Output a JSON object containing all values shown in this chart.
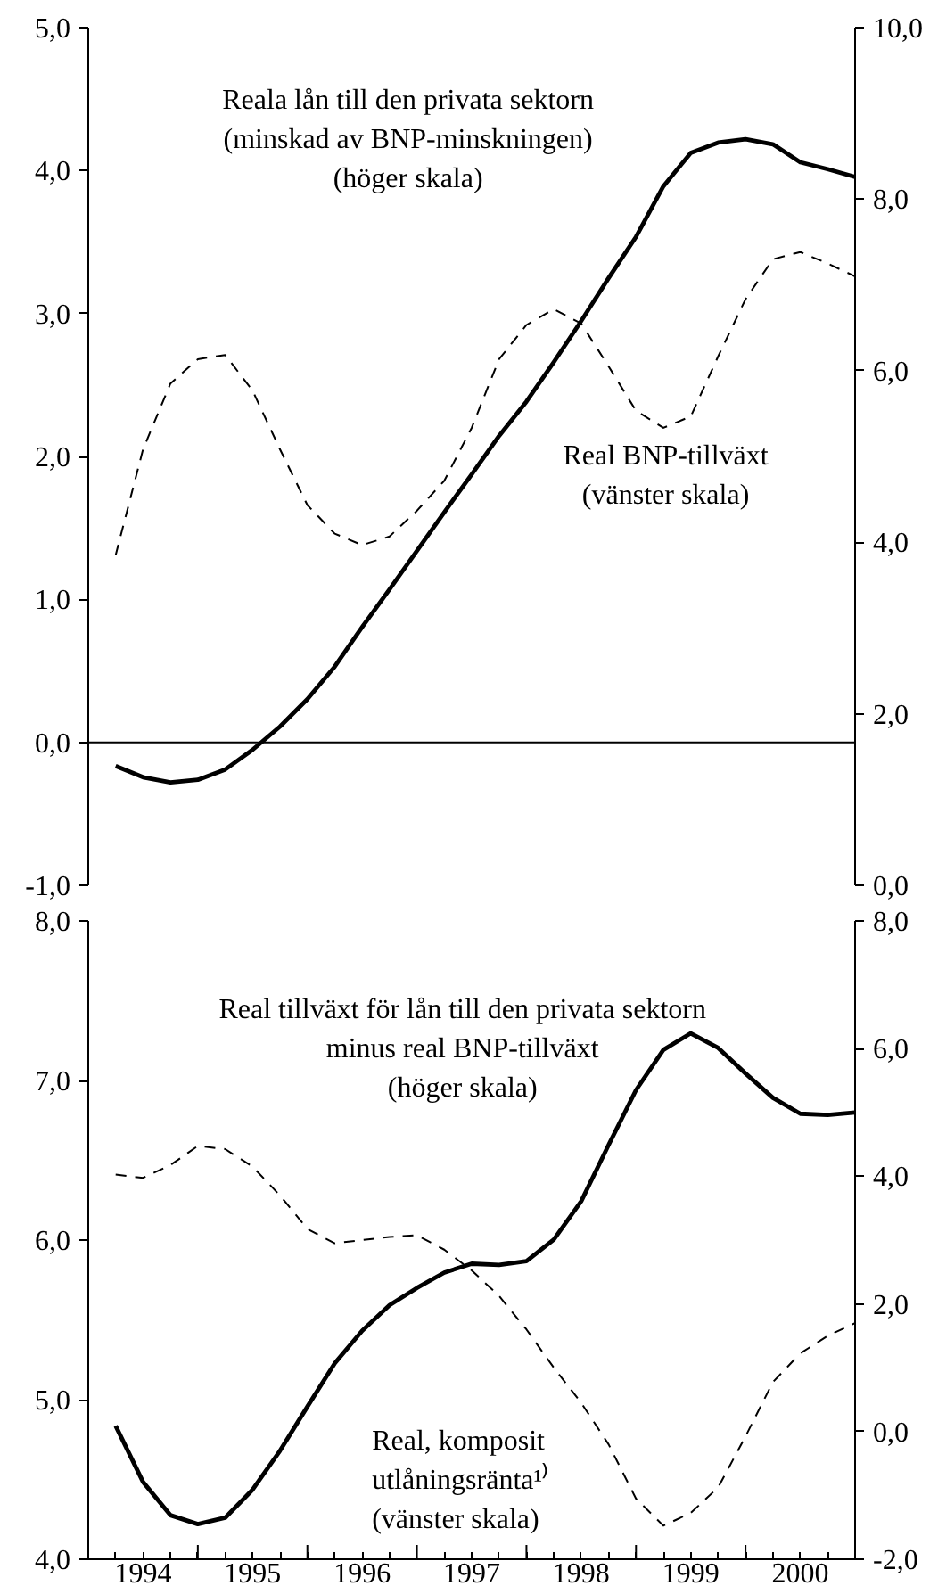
{
  "chart_data": [
    {
      "type": "line",
      "x": [
        1994.25,
        1994.5,
        1994.75,
        1995.0,
        1995.25,
        1995.5,
        1995.75,
        1996.0,
        1996.25,
        1996.5,
        1996.75,
        1997.0,
        1997.25,
        1997.5,
        1997.75,
        1998.0,
        1998.25,
        1998.5,
        1998.75,
        1999.0,
        1999.25,
        1999.5,
        1999.75,
        2000.0,
        2000.25,
        2000.5,
        2000.75,
        2001.0
      ],
      "xlim": [
        1994,
        2001
      ],
      "tick_labels": "y",
      "ylim": [
        -1,
        5
      ],
      "yticks": [
        {
          "value": -1,
          "label": "-1,0"
        },
        {
          "value": 0,
          "label": "0,0"
        },
        {
          "value": 1,
          "label": "1,0"
        },
        {
          "value": 2,
          "label": "2,0"
        },
        {
          "value": 3,
          "label": "3,0"
        },
        {
          "value": 4,
          "label": "4,0"
        },
        {
          "value": 5,
          "label": "5,0"
        }
      ],
      "y2lim": [
        0,
        10
      ],
      "y2ticks": [
        {
          "value": 0,
          "label": "0,0"
        },
        {
          "value": 2,
          "label": "2,0"
        },
        {
          "value": 4,
          "label": "4,0"
        },
        {
          "value": 6,
          "label": "6,0"
        },
        {
          "value": 8,
          "label": "8,0"
        },
        {
          "value": 10,
          "label": "10,0"
        }
      ],
      "ref_lines": [
        {
          "axis": "y",
          "value": 0,
          "color": "#000000"
        }
      ],
      "series": [
        {
          "name": "Reala lån till den privata sektorn\n(minskad av BNP-minskningen)\n(höger skala)",
          "color": "#000000",
          "line_style": "solid",
          "axis": "y2",
          "values": [
            1.39,
            1.26,
            1.2,
            1.23,
            1.35,
            1.58,
            1.85,
            2.17,
            2.55,
            3.01,
            3.45,
            3.9,
            4.35,
            4.79,
            5.24,
            5.64,
            6.1,
            6.58,
            7.08,
            7.56,
            8.15,
            8.54,
            8.66,
            8.7,
            8.64,
            8.43,
            8.35,
            8.26
          ]
        },
        {
          "name": "Real BNP-tillväxt\n(vänster skala)",
          "color": "#000000",
          "line_style": "dashed",
          "values": [
            1.31,
            2.05,
            2.51,
            2.68,
            2.71,
            2.46,
            2.05,
            1.66,
            1.46,
            1.38,
            1.44,
            1.62,
            1.83,
            2.2,
            2.68,
            2.92,
            3.03,
            2.93,
            2.63,
            2.32,
            2.2,
            2.28,
            2.7,
            3.1,
            3.38,
            3.43,
            3.35,
            3.26
          ]
        }
      ]
    },
    {
      "type": "line",
      "x": [
        1994.25,
        1994.5,
        1994.75,
        1995.0,
        1995.25,
        1995.5,
        1995.75,
        1996.0,
        1996.25,
        1996.5,
        1996.75,
        1997.0,
        1997.25,
        1997.5,
        1997.75,
        1998.0,
        1998.25,
        1998.5,
        1998.75,
        1999.0,
        1999.25,
        1999.5,
        1999.75,
        2000.0,
        2000.25,
        2000.5,
        2000.75,
        2001.0
      ],
      "xlim": [
        1994,
        2001
      ],
      "xticks": [
        {
          "value": 1994.25,
          "label": null
        },
        {
          "value": 1994.5,
          "label": "1994"
        },
        {
          "value": 1994.75,
          "label": null
        },
        {
          "value": 1995,
          "label": null
        },
        {
          "value": 1995.25,
          "label": null
        },
        {
          "value": 1995.5,
          "label": "1995"
        },
        {
          "value": 1995.75,
          "label": null
        },
        {
          "value": 1996,
          "label": null
        },
        {
          "value": 1996.25,
          "label": null
        },
        {
          "value": 1996.5,
          "label": "1996"
        },
        {
          "value": 1996.75,
          "label": null
        },
        {
          "value": 1997,
          "label": null
        },
        {
          "value": 1997.25,
          "label": null
        },
        {
          "value": 1997.5,
          "label": "1997"
        },
        {
          "value": 1997.75,
          "label": null
        },
        {
          "value": 1998,
          "label": null
        },
        {
          "value": 1998.25,
          "label": null
        },
        {
          "value": 1998.5,
          "label": "1998"
        },
        {
          "value": 1998.75,
          "label": null
        },
        {
          "value": 1999,
          "label": null
        },
        {
          "value": 1999.25,
          "label": null
        },
        {
          "value": 1999.5,
          "label": "1999"
        },
        {
          "value": 1999.75,
          "label": null
        },
        {
          "value": 2000,
          "label": null
        },
        {
          "value": 2000.25,
          "label": null
        },
        {
          "value": 2000.5,
          "label": "2000"
        },
        {
          "value": 2000.75,
          "label": null
        }
      ],
      "ylim": [
        4,
        8
      ],
      "yticks": [
        {
          "value": 4,
          "label": "4,0"
        },
        {
          "value": 5,
          "label": "5,0"
        },
        {
          "value": 6,
          "label": "6,0"
        },
        {
          "value": 7,
          "label": "7,0"
        },
        {
          "value": 8,
          "label": "8,0"
        }
      ],
      "y2lim": [
        -2,
        8
      ],
      "y2ticks": [
        {
          "value": -2,
          "label": "-2,0"
        },
        {
          "value": 0,
          "label": "0,0"
        },
        {
          "value": 2,
          "label": "2,0"
        },
        {
          "value": 4,
          "label": "4,0"
        },
        {
          "value": 6,
          "label": "6,0"
        },
        {
          "value": 8,
          "label": "8,0"
        }
      ],
      "series": [
        {
          "name": "Real tillväxt för lån till den privata sektorn\nminus real BNP-tillväxt\n(höger skala)",
          "color": "#000000",
          "line_style": "solid",
          "axis": "y2",
          "values": [
            0.09,
            -0.79,
            -1.31,
            -1.45,
            -1.35,
            -0.91,
            -0.3,
            0.39,
            1.07,
            1.58,
            1.98,
            2.25,
            2.49,
            2.63,
            2.61,
            2.67,
            3.01,
            3.61,
            4.49,
            5.35,
            5.98,
            6.24,
            6.01,
            5.61,
            5.23,
            4.98,
            4.96,
            5.0
          ]
        },
        {
          "name": "Real, komposit\nutlåningsränta¹⁾\n(vänster skala)",
          "color": "#000000",
          "line_style": "dashed",
          "values": [
            6.41,
            6.39,
            6.47,
            6.59,
            6.57,
            6.46,
            6.28,
            6.07,
            5.98,
            6.0,
            6.02,
            6.03,
            5.94,
            5.81,
            5.65,
            5.44,
            5.2,
            4.98,
            4.72,
            4.38,
            4.21,
            4.29,
            4.45,
            4.77,
            5.11,
            5.29,
            5.4,
            5.48
          ]
        }
      ]
    }
  ]
}
